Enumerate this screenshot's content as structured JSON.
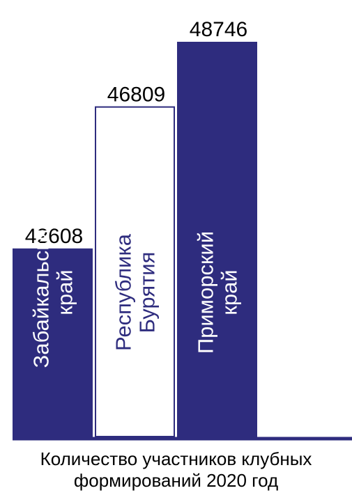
{
  "chart_data": {
    "type": "bar",
    "categories": [
      [
        "Забайкальский",
        "край"
      ],
      [
        "Республика",
        "Бурятия"
      ],
      [
        "Приморский",
        "край"
      ]
    ],
    "values": [
      42608,
      46809,
      48746
    ],
    "caption": [
      "Количество участников клубных",
      "формирований 2020 год"
    ],
    "bar_styles": [
      {
        "fill": "#2e2c7e",
        "stroke": "none",
        "label_color": "#ffffff"
      },
      {
        "fill": "#ffffff",
        "stroke": "#2e2c7e",
        "label_color": "#2e2c7e"
      },
      {
        "fill": "#2e2c7e",
        "stroke": "none",
        "label_color": "#ffffff"
      }
    ],
    "axis_color": "#2e2c7e",
    "grid": false,
    "legend": "none"
  }
}
